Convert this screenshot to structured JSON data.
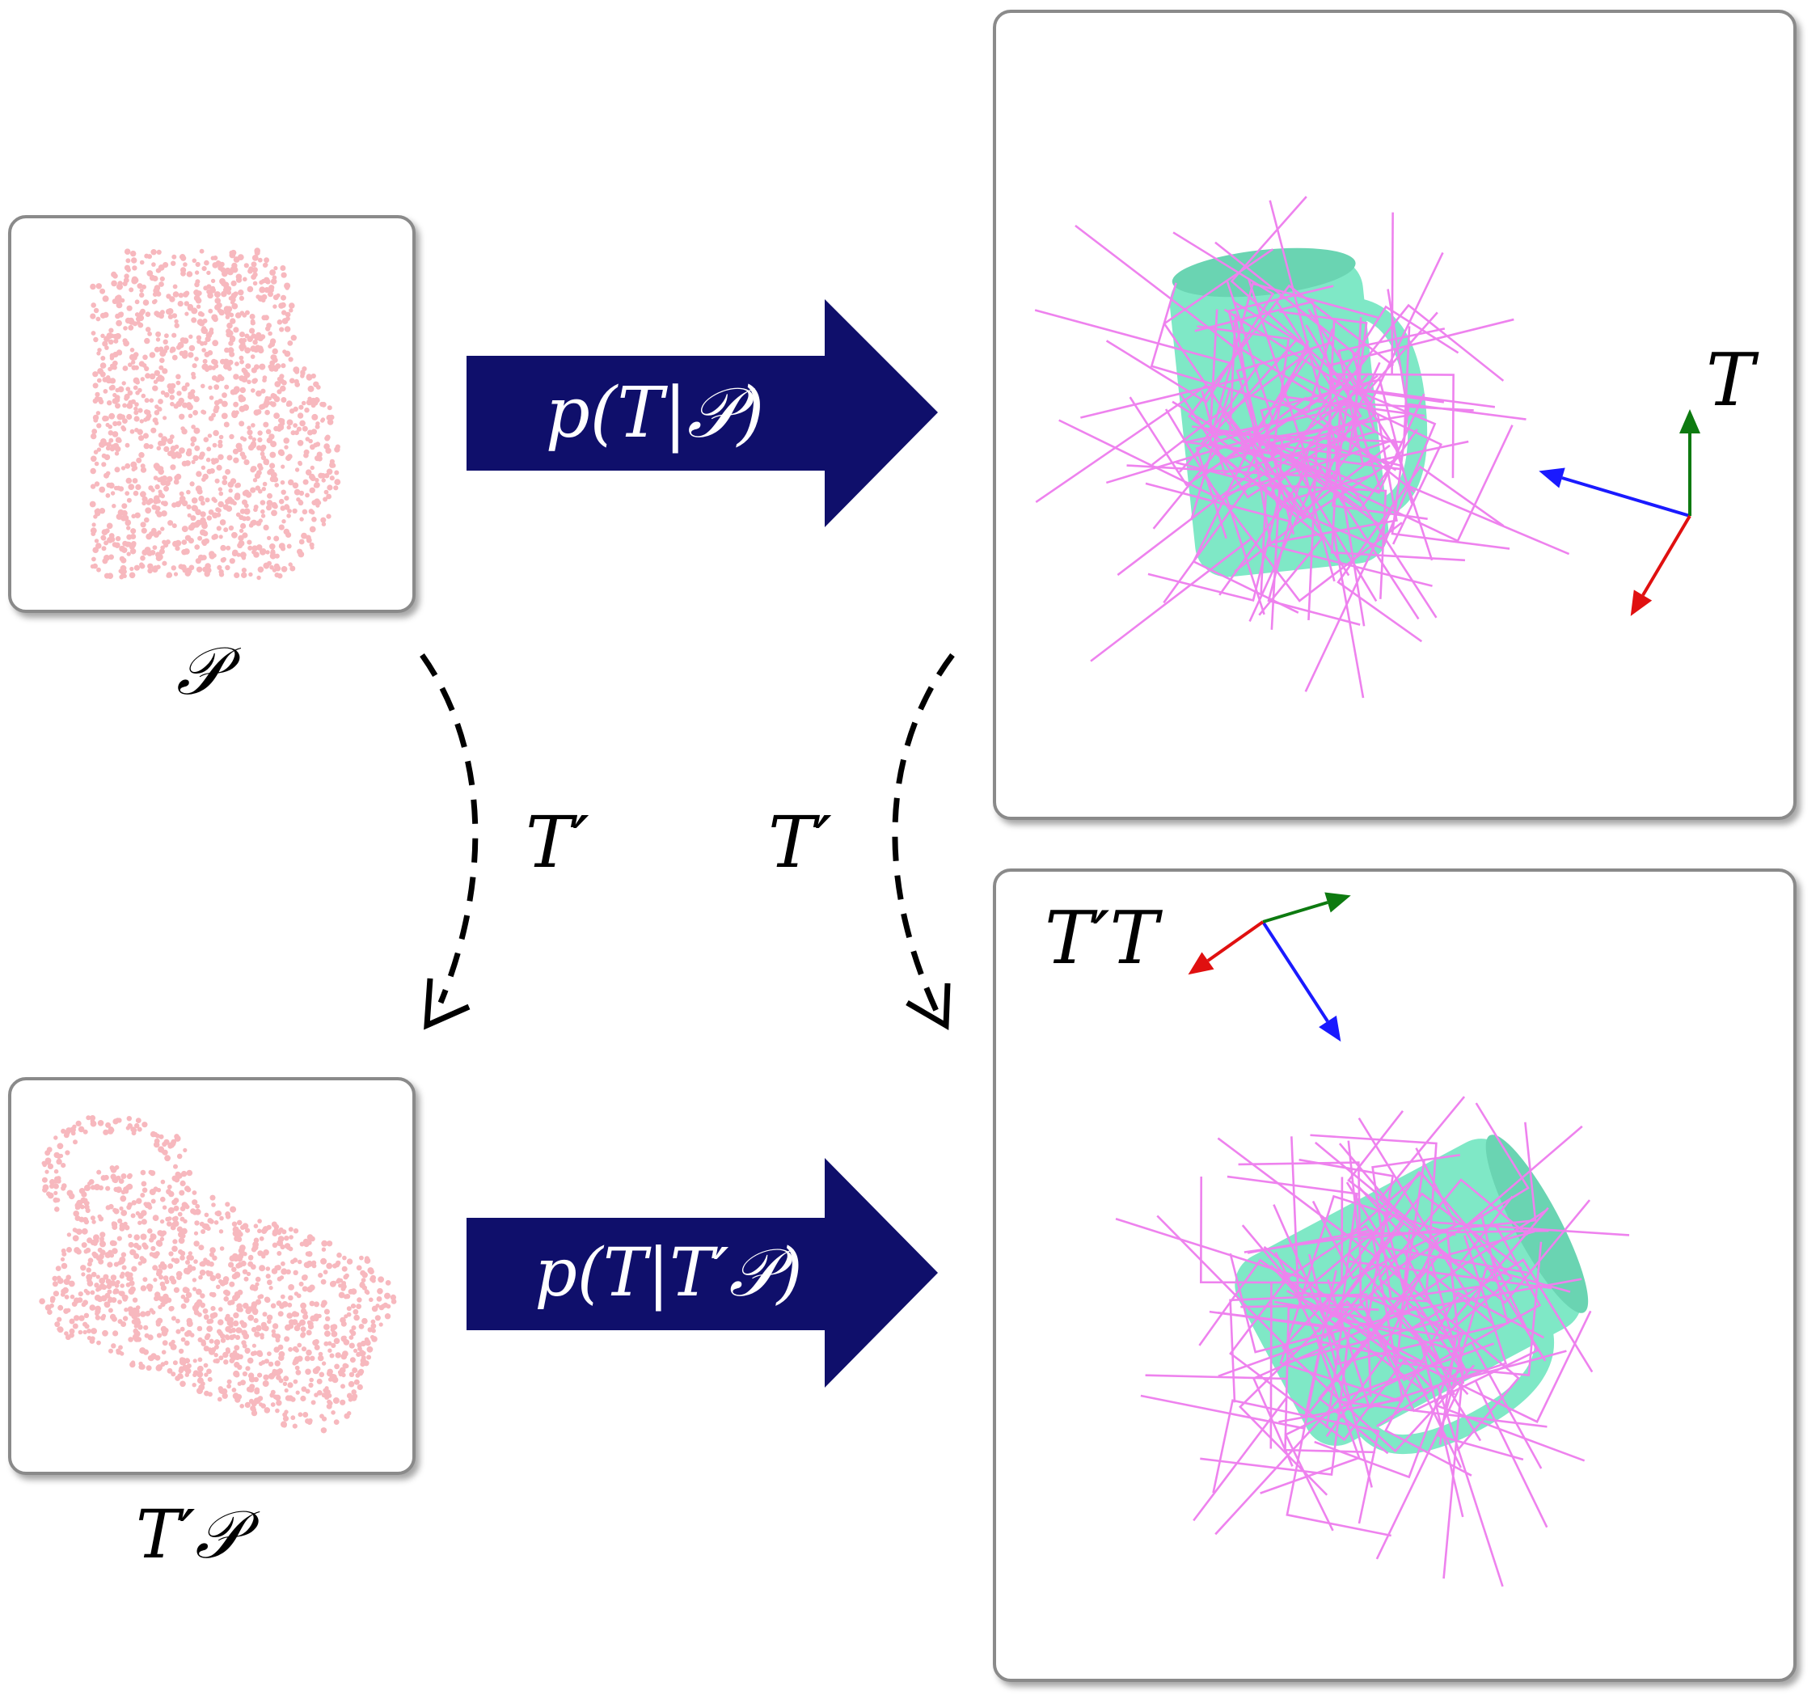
{
  "labels": {
    "input_cloud": "𝒫",
    "transformed_cloud": "T′𝒫",
    "transform_left": "T′",
    "transform_right": "T′",
    "pose_top": "T",
    "pose_bottom": "T′T"
  },
  "arrows": {
    "top": "p(T|𝒫)",
    "bottom": "p(T|T′𝒫)"
  },
  "colors": {
    "arrow_fill": "#0f0f6b",
    "points": "#f7b8be",
    "mug": "#7fe8c6",
    "grasp_lines": "#ee82ee",
    "axis_x": "#e01010",
    "axis_y": "#0d7a10",
    "axis_z": "#1a1aff"
  }
}
